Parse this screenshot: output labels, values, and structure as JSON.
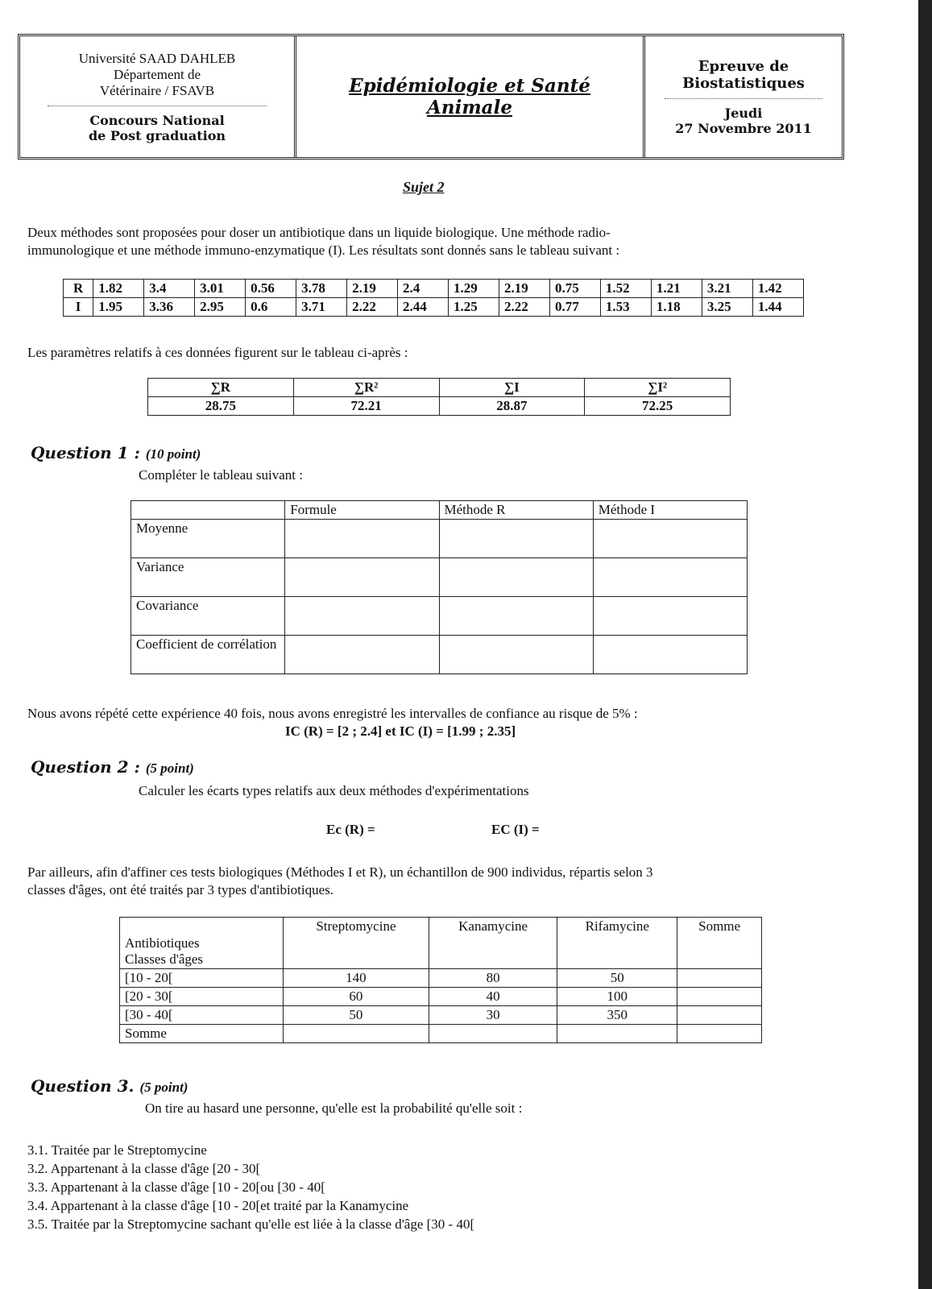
{
  "header": {
    "left": [
      "Université SAAD DAHLEB",
      "Département de",
      "Vétérinaire / FSAVB"
    ],
    "left_bottom": [
      "Concours National",
      "de Post graduation"
    ],
    "center": [
      "Epidémiologie et Santé",
      "Animale"
    ],
    "right_top": [
      "Epreuve de",
      "Biostatistiques"
    ],
    "right_bottom": [
      "Jeudi",
      "27 Novembre 2011"
    ]
  },
  "subject": "Sujet 2",
  "intro": [
    "Deux méthodes sont proposées pour doser un antibiotique dans un liquide biologique. Une méthode radio-",
    "immunologique et une méthode immuno-enzymatique (I). Les résultats sont donnés sans le tableau suivant :"
  ],
  "data_table": {
    "rows": [
      [
        "R",
        "1.82",
        "3.4",
        "3.01",
        "0.56",
        "3.78",
        "2.19",
        "2.4",
        "1.29",
        "2.19",
        "0.75",
        "1.52",
        "1.21",
        "3.21",
        "1.42"
      ],
      [
        "I",
        "1.95",
        "3.36",
        "2.95",
        "0.6",
        "3.71",
        "2.22",
        "2.44",
        "1.25",
        "2.22",
        "0.77",
        "1.53",
        "1.18",
        "3.25",
        "1.44"
      ]
    ]
  },
  "params_intro": "Les paramètres relatifs à ces données figurent sur le tableau ci-après :",
  "params": {
    "headers": [
      "∑R",
      "∑R²",
      "∑I",
      "∑I²"
    ],
    "values": [
      "28.75",
      "72.21",
      "28.87",
      "72.25"
    ]
  },
  "q1": {
    "title": "Question 1 :",
    "points": "(10 point)",
    "text": "Compléter le tableau suivant :",
    "headers": [
      "",
      "Formule",
      "Méthode R",
      "Méthode I"
    ],
    "rows": [
      "Moyenne",
      "Variance",
      "Covariance",
      "Coefficient de corrélation"
    ]
  },
  "ic": {
    "text": "Nous avons répété cette expérience 40 fois, nous avons enregistré les intervalles de confiance au risque de 5% :",
    "values": "IC (R) = [2 ; 2.4] et IC (I) = [1.99 ; 2.35]"
  },
  "q2": {
    "title": "Question 2 :",
    "points": "(5 point)",
    "text": "Calculer les écarts types relatifs aux deux méthodes d'expérimentations",
    "ecr": "Ec (R) =",
    "eci": "EC (I) ="
  },
  "para3": [
    "Par ailleurs, afin d'affiner ces tests biologiques (Méthodes I et R), un échantillon de 900 individus, répartis selon 3",
    "classes d'âges, ont été traités par 3 types d'antibiotiques."
  ],
  "ab_table": {
    "corner": [
      "Antibiotiques",
      "Classes d'âges"
    ],
    "headers": [
      "Streptomycine",
      "Kanamycine",
      "Rifamycine",
      "Somme"
    ],
    "rows": [
      {
        "label": "[10 - 20[",
        "values": [
          "140",
          "80",
          "50",
          ""
        ]
      },
      {
        "label": "[20 - 30[",
        "values": [
          "60",
          "40",
          "100",
          ""
        ]
      },
      {
        "label": "[30 - 40[",
        "values": [
          "50",
          "30",
          "350",
          ""
        ]
      },
      {
        "label": "Somme",
        "values": [
          "",
          "",
          "",
          ""
        ]
      }
    ]
  },
  "q3": {
    "title": "Question 3.",
    "points": "(5 point)",
    "text": "On tire au hasard une personne, qu'elle est la probabilité qu'elle soit :",
    "items": [
      "3.1. Traitée par le Streptomycine",
      "3.2. Appartenant à la classe d'âge [20 - 30[",
      "3.3. Appartenant à la classe d'âge [10 - 20[ou [30 - 40[",
      "3.4. Appartenant à la classe d'âge [10 - 20[et traité par la Kanamycine",
      "3.5. Traitée par la Streptomycine sachant qu'elle est liée à la classe d'âge [30 - 40["
    ]
  }
}
